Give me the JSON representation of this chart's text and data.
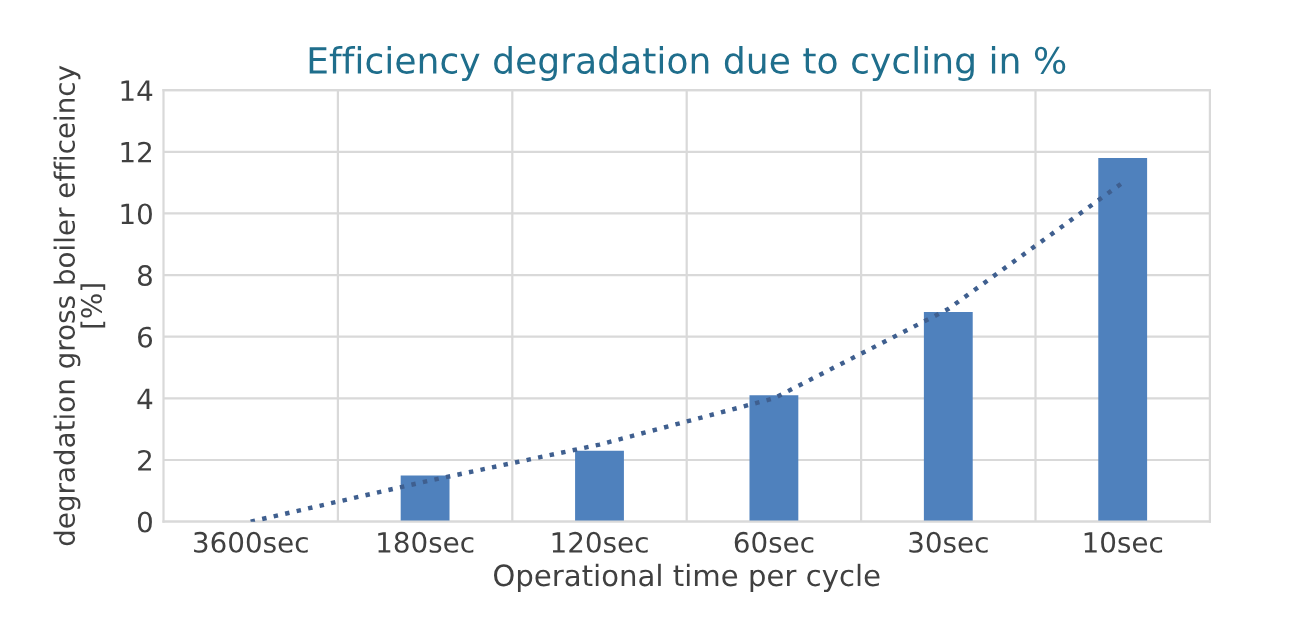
{
  "chart_data": {
    "type": "bar",
    "title": "Efficiency degradation due to cycling in %",
    "xlabel": "Operational time per cycle",
    "ylabel": "degradation gross boiler efficeincy\n[%]",
    "categories": [
      "3600sec",
      "180sec",
      "120sec",
      "60sec",
      "30sec",
      "10sec"
    ],
    "series": [
      {
        "color": "#4f81bd",
        "values": [
          0,
          1.5,
          2.3,
          4.1,
          6.8,
          11.8
        ]
      },
      {
        "type": "line",
        "color": "#3f5f8f",
        "line_style": "dotted",
        "values": [
          0,
          1.3,
          2.5,
          4.0,
          6.9,
          11.0
        ]
      }
    ],
    "ylim": [
      0,
      14
    ],
    "yticks": [
      0,
      2,
      4,
      6,
      8,
      10,
      12,
      14
    ],
    "grid": true,
    "legend": false
  }
}
